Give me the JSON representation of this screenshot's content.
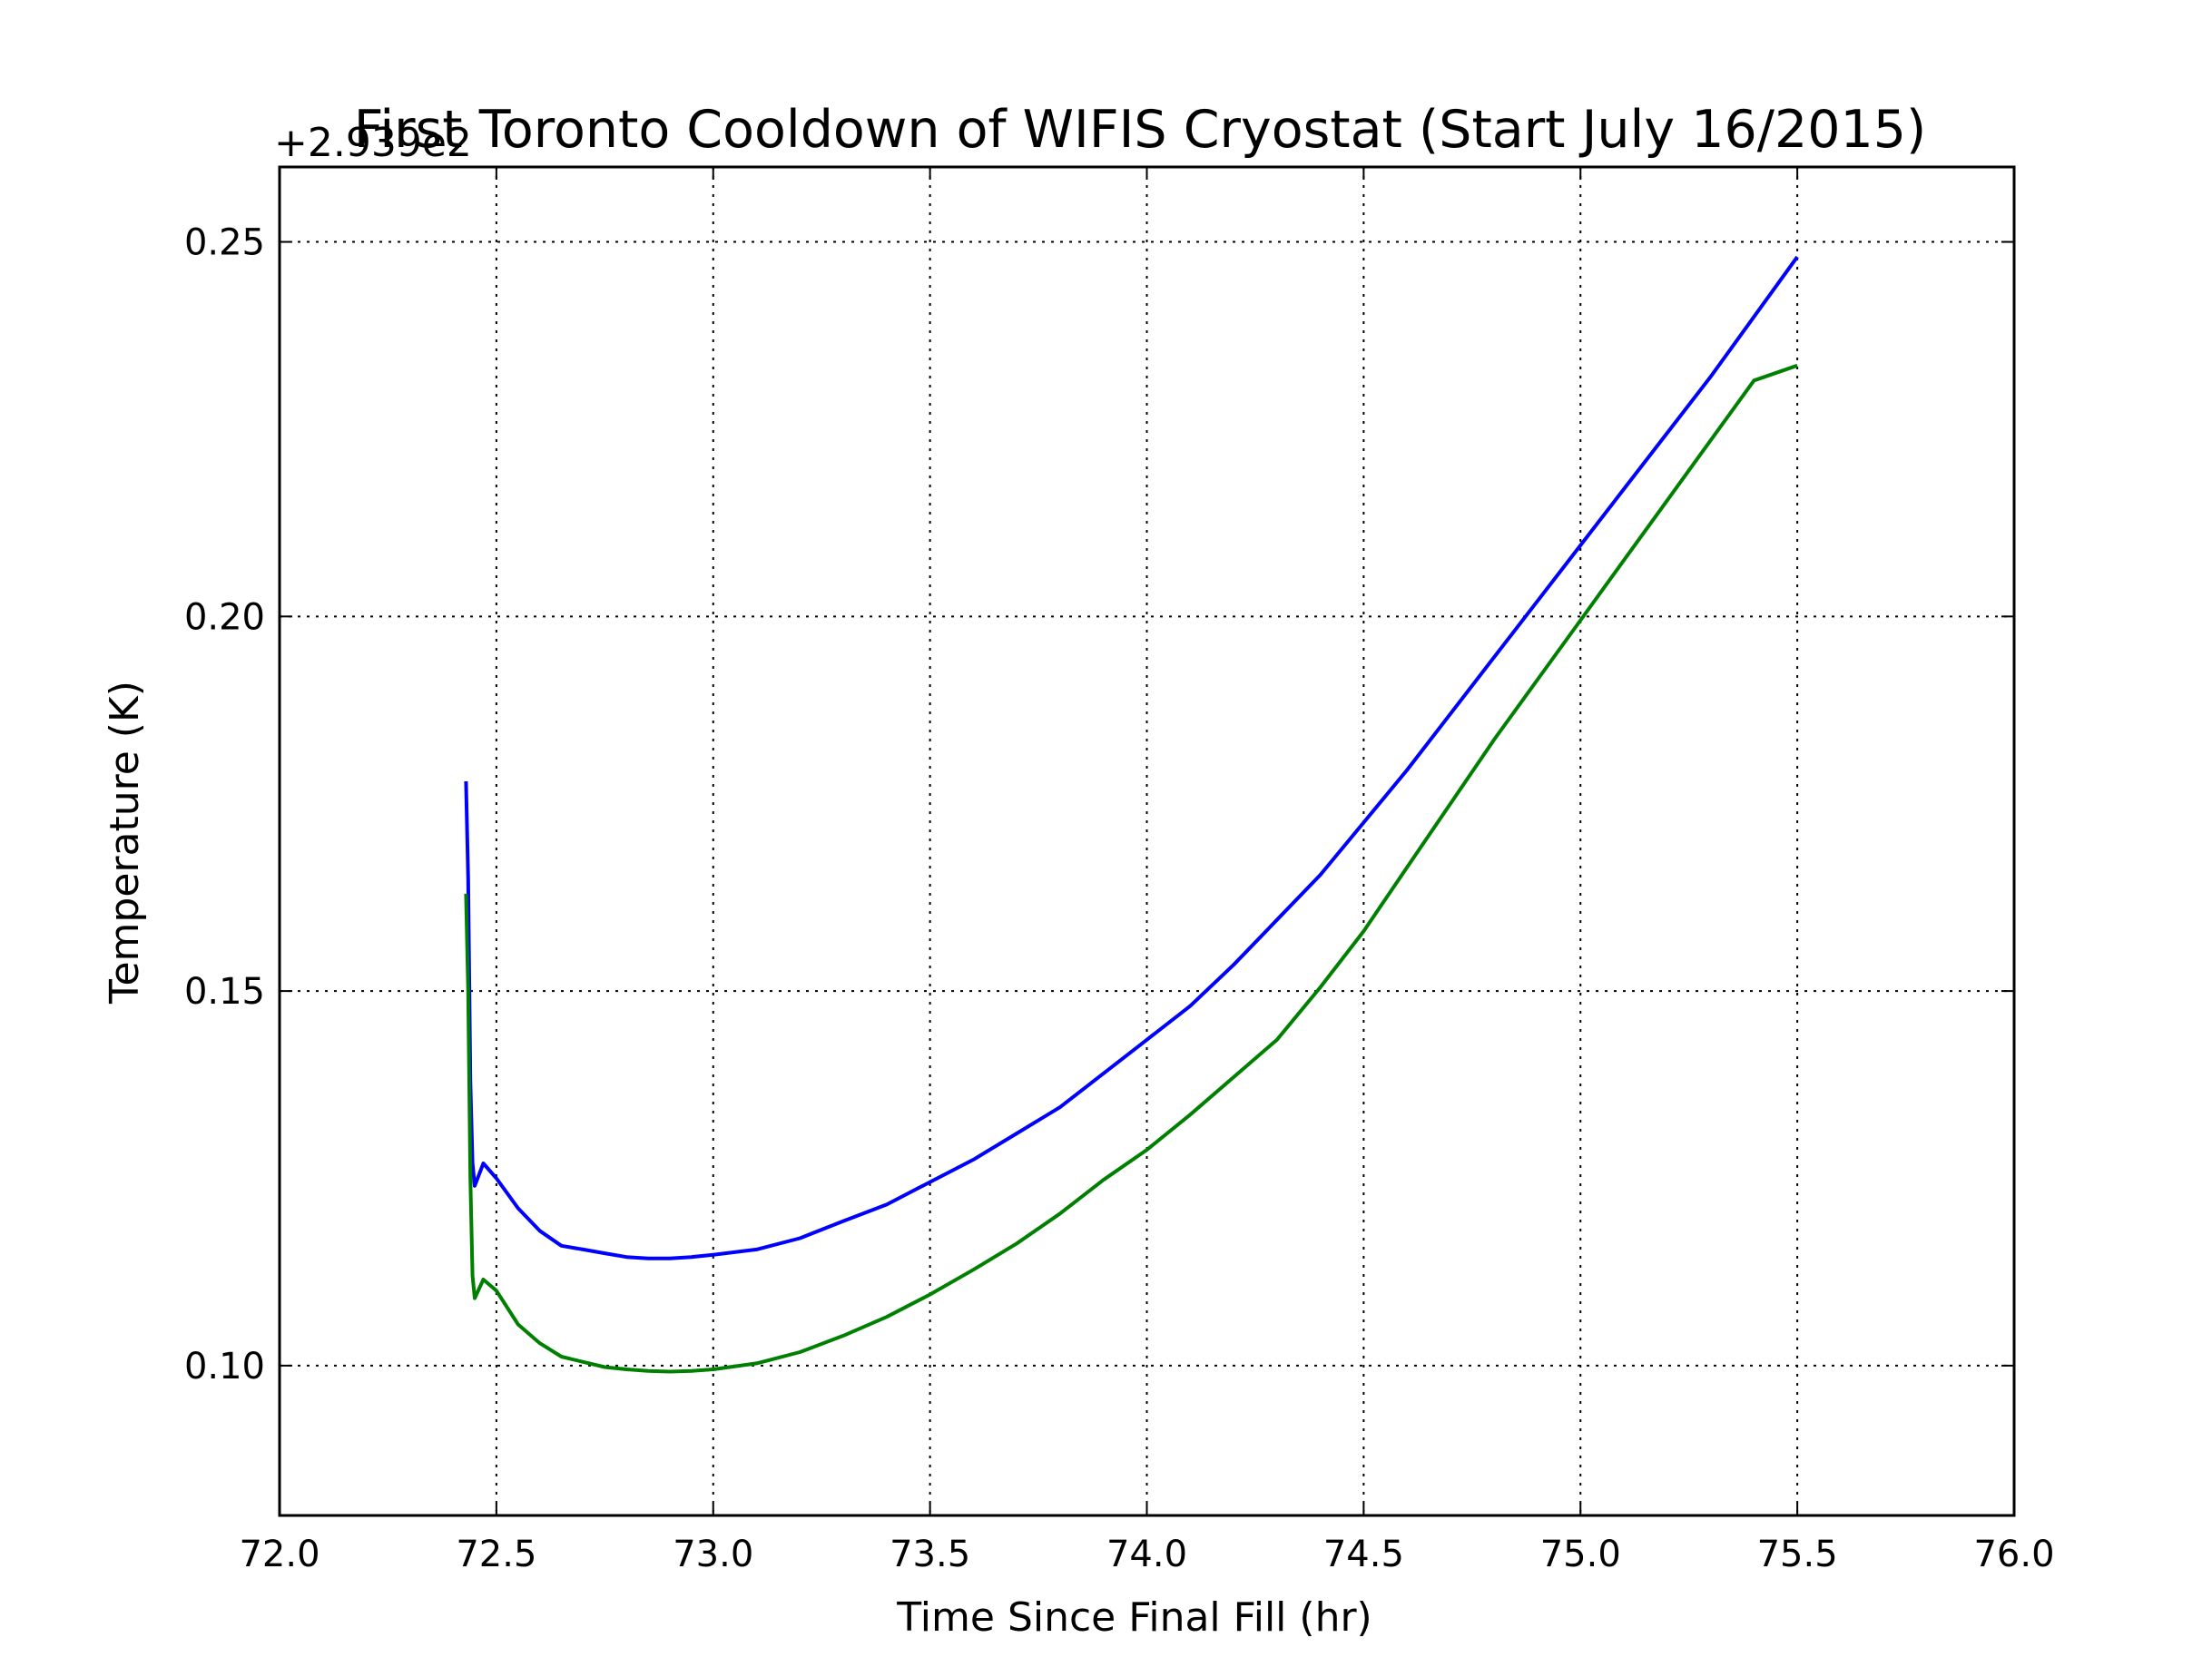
{
  "chart_data": {
    "type": "line",
    "title": "First Toronto Cooldown of WIFIS Cryostat (Start July 16/2015)",
    "xlabel": "Time Since Final Fill (hr)",
    "ylabel": "Temperature (K)",
    "y_offset_label": "+2.939e2",
    "xlim": [
      72.0,
      76.0
    ],
    "ylim": [
      0.08,
      0.26
    ],
    "grid": true,
    "x_ticks": [
      72.0,
      72.5,
      73.0,
      73.5,
      74.0,
      74.5,
      75.0,
      75.5,
      76.0
    ],
    "x_tick_labels": [
      "72.0",
      "72.5",
      "73.0",
      "73.5",
      "74.0",
      "74.5",
      "75.0",
      "75.5",
      "76.0"
    ],
    "y_ticks": [
      0.1,
      0.15,
      0.2,
      0.25
    ],
    "y_tick_labels": [
      "0.10",
      "0.15",
      "0.20",
      "0.25"
    ],
    "series": [
      {
        "color": "#0000ff",
        "x": [
          72.43,
          72.435,
          72.44,
          72.445,
          72.45,
          72.47,
          72.5,
          72.55,
          72.6,
          72.65,
          72.7,
          72.75,
          72.8,
          72.85,
          72.9,
          72.95,
          73.0,
          73.1,
          73.2,
          73.3,
          73.4,
          73.5,
          73.6,
          73.7,
          73.8,
          73.9,
          74.0,
          74.1,
          74.2,
          74.3,
          74.4,
          74.5,
          74.6,
          74.7,
          74.8,
          74.9,
          75.0,
          75.1,
          75.2,
          75.3,
          75.4,
          75.5
        ],
        "y": [
          0.178,
          0.165,
          0.138,
          0.127,
          0.124,
          0.127,
          0.125,
          0.121,
          0.118,
          0.116,
          0.1155,
          0.115,
          0.1145,
          0.1143,
          0.1143,
          0.1145,
          0.1148,
          0.1155,
          0.117,
          0.1193,
          0.1215,
          0.1245,
          0.1275,
          0.131,
          0.1345,
          0.139,
          0.1435,
          0.148,
          0.1535,
          0.1595,
          0.1655,
          0.1725,
          0.1795,
          0.187,
          0.1945,
          0.202,
          0.2095,
          0.217,
          0.2245,
          0.232,
          0.24,
          0.248
        ]
      },
      {
        "color": "#008000",
        "x": [
          72.43,
          72.435,
          72.44,
          72.445,
          72.45,
          72.47,
          72.5,
          72.55,
          72.6,
          72.65,
          72.7,
          72.75,
          72.8,
          72.85,
          72.9,
          72.95,
          73.0,
          73.1,
          73.2,
          73.3,
          73.4,
          73.5,
          73.6,
          73.7,
          73.8,
          73.9,
          74.0,
          74.1,
          74.2,
          74.3,
          74.4,
          74.5,
          74.6,
          74.7,
          74.8,
          74.9,
          75.0,
          75.1,
          75.2,
          75.3,
          75.4,
          75.5
        ],
        "y": [
          0.163,
          0.15,
          0.125,
          0.112,
          0.109,
          0.1115,
          0.11,
          0.1055,
          0.103,
          0.1012,
          0.1005,
          0.0998,
          0.0995,
          0.0993,
          0.0992,
          0.0993,
          0.0995,
          0.1003,
          0.1018,
          0.104,
          0.1065,
          0.1095,
          0.1128,
          0.1163,
          0.1203,
          0.1248,
          0.1288,
          0.1335,
          0.1385,
          0.1435,
          0.1505,
          0.158,
          0.1665,
          0.175,
          0.1835,
          0.1915,
          0.1995,
          0.2075,
          0.2155,
          0.2235,
          0.2315,
          0.2335
        ]
      }
    ]
  }
}
